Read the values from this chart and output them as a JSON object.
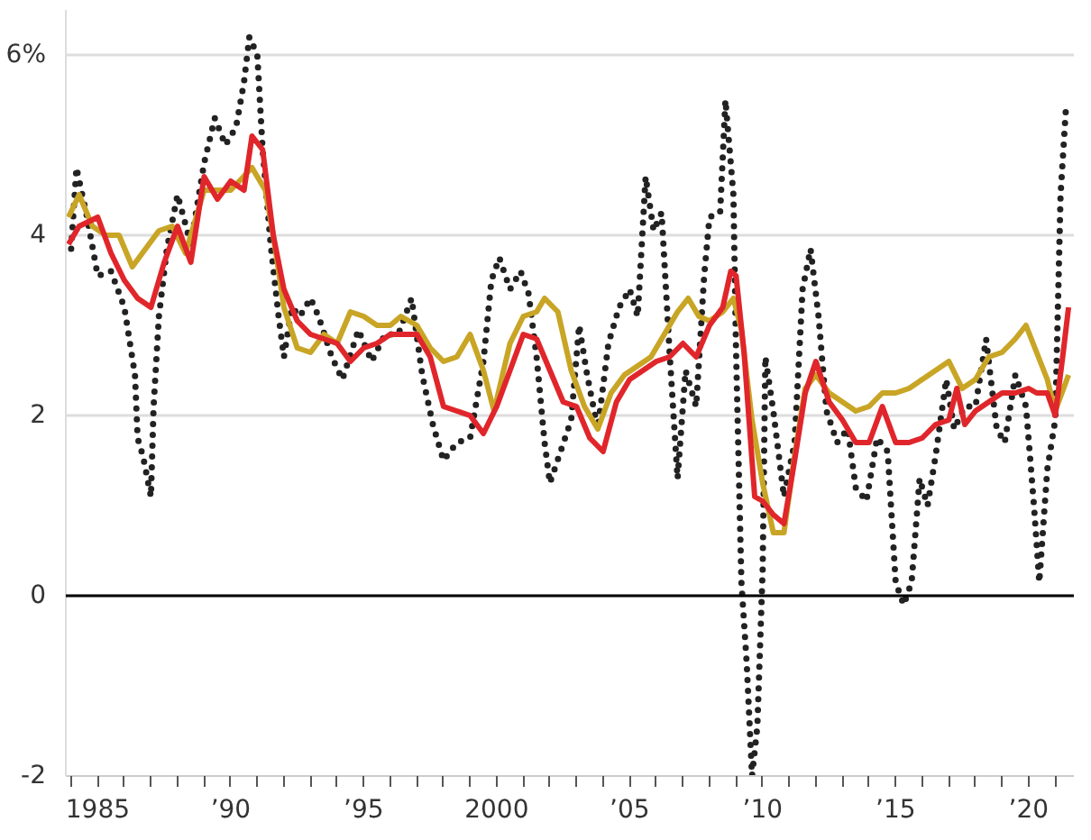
{
  "chart_data": {
    "type": "line",
    "xlim": [
      1983.8,
      2021.7
    ],
    "ylim": [
      -2,
      6.5
    ],
    "yticks": [
      {
        "value": -2,
        "label": "-2"
      },
      0,
      2,
      4,
      {
        "value": 6,
        "label": "6%"
      }
    ],
    "xticks": [
      {
        "value": 1984,
        "label": null
      },
      {
        "value": 1985,
        "label": "1985"
      },
      {
        "value": 1986,
        "label": null
      },
      {
        "value": 1987,
        "label": null
      },
      {
        "value": 1988,
        "label": null
      },
      {
        "value": 1989,
        "label": null
      },
      {
        "value": 1990,
        "label": "’90"
      },
      {
        "value": 1991,
        "label": null
      },
      {
        "value": 1992,
        "label": null
      },
      {
        "value": 1993,
        "label": null
      },
      {
        "value": 1994,
        "label": null
      },
      {
        "value": 1995,
        "label": "’95"
      },
      {
        "value": 1996,
        "label": null
      },
      {
        "value": 1997,
        "label": null
      },
      {
        "value": 1998,
        "label": null
      },
      {
        "value": 1999,
        "label": null
      },
      {
        "value": 2000,
        "label": "2000"
      },
      {
        "value": 2001,
        "label": null
      },
      {
        "value": 2002,
        "label": null
      },
      {
        "value": 2003,
        "label": null
      },
      {
        "value": 2004,
        "label": null
      },
      {
        "value": 2005,
        "label": "’05"
      },
      {
        "value": 2006,
        "label": null
      },
      {
        "value": 2007,
        "label": null
      },
      {
        "value": 2008,
        "label": null
      },
      {
        "value": 2009,
        "label": null
      },
      {
        "value": 2010,
        "label": "’10"
      },
      {
        "value": 2011,
        "label": null
      },
      {
        "value": 2012,
        "label": null
      },
      {
        "value": 2013,
        "label": null
      },
      {
        "value": 2014,
        "label": null
      },
      {
        "value": 2015,
        "label": "’15"
      },
      {
        "value": 2016,
        "label": null
      },
      {
        "value": 2017,
        "label": null
      },
      {
        "value": 2018,
        "label": null
      },
      {
        "value": 2019,
        "label": null
      },
      {
        "value": 2020,
        "label": "’20"
      },
      {
        "value": 2021,
        "label": null
      }
    ],
    "grid": "y",
    "marker": "none",
    "ref_lines": [
      {
        "axis": "y",
        "value": 0,
        "color": "#000000"
      }
    ],
    "series": [
      {
        "color": "#222222",
        "line_style": "dotted",
        "x": [
          1984.0,
          1984.2,
          1984.6,
          1985,
          1985.5,
          1986,
          1986.4,
          1986.5,
          1986.7,
          1987.0,
          1987.1,
          1987.3,
          1987.6,
          1988,
          1988.5,
          1989,
          1989.4,
          1989.8,
          1990.2,
          1990.5,
          1990.7,
          1991,
          1991.2,
          1991.5,
          1991.8,
          1992,
          1992.3,
          1992.6,
          1993,
          1993.3,
          1993.8,
          1994.2,
          1994.8,
          1995.3,
          1995.8,
          1996.3,
          1996.8,
          1997.2,
          1997.6,
          1998,
          1998.5,
          1999,
          1999.5,
          1999.8,
          2000.1,
          2000.5,
          2000.9,
          2001.2,
          2001.5,
          2001.8,
          2002,
          2002.4,
          2002.8,
          2003.1,
          2003.4,
          2003.8,
          2004.2,
          2004.6,
          2005,
          2005.3,
          2005.6,
          2005.9,
          2006.2,
          2006.5,
          2006.8,
          2007.1,
          2007.5,
          2007.8,
          2008,
          2008.4,
          2008.6,
          2008.9,
          2009.0,
          2009.2,
          2009.4,
          2009.6,
          2009.8,
          2010.0,
          2010.1,
          2010.4,
          2010.8,
          2011.2,
          2011.5,
          2011.8,
          2012.1,
          2012.4,
          2012.8,
          2013.2,
          2013.5,
          2013.9,
          2014.3,
          2014.7,
          2015,
          2015.3,
          2015.6,
          2015.9,
          2016.2,
          2016.5,
          2016.9,
          2017.2,
          2017.6,
          2018,
          2018.4,
          2018.8,
          2019.1,
          2019.5,
          2019.9,
          2020.2,
          2020.4,
          2020.7,
          2021.0,
          2021.2,
          2021.4
        ],
        "values": [
          3.85,
          4.75,
          4.2,
          3.55,
          3.6,
          3.2,
          2.45,
          1.75,
          1.55,
          1.1,
          2.1,
          3.1,
          3.85,
          4.45,
          3.9,
          4.8,
          5.3,
          5.0,
          5.2,
          5.7,
          6.2,
          6.0,
          4.95,
          3.9,
          3.1,
          2.65,
          3.2,
          3.1,
          3.3,
          3.1,
          2.65,
          2.4,
          2.95,
          2.6,
          2.9,
          2.9,
          3.3,
          2.45,
          1.9,
          1.5,
          1.7,
          1.75,
          2.6,
          3.5,
          3.75,
          3.4,
          3.6,
          3.35,
          2.65,
          1.7,
          1.25,
          1.6,
          1.95,
          3.0,
          2.45,
          1.85,
          2.8,
          3.2,
          3.4,
          3.1,
          4.65,
          4.05,
          4.25,
          2.7,
          1.3,
          2.5,
          2.1,
          3.55,
          4.2,
          4.25,
          5.5,
          4.45,
          2.7,
          0.15,
          -0.75,
          -2.0,
          -1.45,
          0.3,
          2.65,
          2.05,
          1.1,
          1.7,
          3.4,
          3.85,
          3.1,
          2.05,
          1.7,
          1.85,
          1.2,
          1.05,
          1.75,
          1.6,
          0.15,
          -0.1,
          0.15,
          1.3,
          1.0,
          1.55,
          2.4,
          1.85,
          2.1,
          2.1,
          2.85,
          1.85,
          1.7,
          2.45,
          2.1,
          1.0,
          0.15,
          1.4,
          1.95,
          4.45,
          5.4
        ]
      },
      {
        "color": "#c9a526",
        "line_style": "solid",
        "x": [
          1983.9,
          1984.3,
          1984.8,
          1985.3,
          1985.8,
          1986.3,
          1986.8,
          1987.3,
          1987.8,
          1988.3,
          1989,
          1990,
          1990.8,
          1991.3,
          1991.6,
          1992,
          1992.5,
          1993,
          1993.5,
          1994,
          1994.5,
          1995,
          1995.5,
          1996,
          1996.4,
          1997,
          1997.5,
          1998,
          1998.5,
          1999,
          1999.5,
          1999.9,
          2000.5,
          2001,
          2001.5,
          2001.8,
          2002.3,
          2002.8,
          2003.3,
          2003.8,
          2004.3,
          2004.8,
          2005.3,
          2005.8,
          2006.3,
          2006.8,
          2007.2,
          2007.6,
          2008,
          2008.5,
          2008.9,
          2009.2,
          2009.6,
          2010,
          2010.4,
          2010.8,
          2011.2,
          2011.6,
          2012,
          2012.5,
          2013,
          2013.5,
          2014,
          2014.5,
          2015,
          2015.5,
          2016,
          2016.5,
          2017,
          2017.5,
          2018,
          2018.5,
          2019,
          2019.5,
          2019.9,
          2020.3,
          2020.7,
          2021.0,
          2021.5
        ],
        "values": [
          4.2,
          4.45,
          4.1,
          4.0,
          4.0,
          3.65,
          3.85,
          4.05,
          4.1,
          3.8,
          4.5,
          4.5,
          4.75,
          4.5,
          4.0,
          3.2,
          2.75,
          2.7,
          2.9,
          2.8,
          3.15,
          3.1,
          3.0,
          3.0,
          3.1,
          3.0,
          2.75,
          2.6,
          2.65,
          2.9,
          2.5,
          2.05,
          2.8,
          3.1,
          3.15,
          3.3,
          3.15,
          2.5,
          2.1,
          1.85,
          2.25,
          2.45,
          2.55,
          2.65,
          2.9,
          3.15,
          3.3,
          3.1,
          3.05,
          3.15,
          3.3,
          2.95,
          1.95,
          1.25,
          0.7,
          0.7,
          1.55,
          2.3,
          2.45,
          2.25,
          2.15,
          2.05,
          2.1,
          2.25,
          2.25,
          2.3,
          2.4,
          2.5,
          2.6,
          2.3,
          2.4,
          2.65,
          2.7,
          2.85,
          3.0,
          2.7,
          2.4,
          2.05,
          2.45
        ]
      },
      {
        "color": "#e0262b",
        "line_style": "solid",
        "x": [
          1983.9,
          1984.3,
          1985,
          1985.5,
          1986,
          1986.5,
          1987.0,
          1987.5,
          1988,
          1988.5,
          1989,
          1989.5,
          1990,
          1990.5,
          1990.8,
          1991.2,
          1991.6,
          1992,
          1992.5,
          1993,
          1993.5,
          1994,
          1994.5,
          1995,
          1995.5,
          1996,
          1996.4,
          1997,
          1997.5,
          1998,
          1998.5,
          1999,
          1999.5,
          2000,
          2000.5,
          2001,
          2001.5,
          2002,
          2002.5,
          2003,
          2003.5,
          2004,
          2004.5,
          2005,
          2005.5,
          2006,
          2006.5,
          2007,
          2007.5,
          2008,
          2008.5,
          2008.8,
          2009,
          2009.3,
          2009.7,
          2010,
          2010.4,
          2010.8,
          2011.2,
          2011.6,
          2012,
          2012.5,
          2013,
          2013.5,
          2014,
          2014.5,
          2015,
          2015.5,
          2016,
          2016.5,
          2017,
          2017.3,
          2017.6,
          2018,
          2018.5,
          2019,
          2019.5,
          2020,
          2020.3,
          2020.7,
          2021.0,
          2021.3,
          2021.5
        ],
        "values": [
          3.9,
          4.1,
          4.2,
          3.8,
          3.5,
          3.3,
          3.2,
          3.7,
          4.1,
          3.7,
          4.65,
          4.4,
          4.6,
          4.5,
          5.1,
          4.95,
          4.0,
          3.4,
          3.05,
          2.9,
          2.85,
          2.8,
          2.6,
          2.75,
          2.8,
          2.9,
          2.9,
          2.9,
          2.65,
          2.1,
          2.05,
          2.0,
          1.8,
          2.1,
          2.5,
          2.9,
          2.85,
          2.5,
          2.15,
          2.1,
          1.75,
          1.6,
          2.15,
          2.4,
          2.5,
          2.6,
          2.65,
          2.8,
          2.65,
          3.0,
          3.2,
          3.6,
          3.55,
          2.7,
          1.1,
          1.05,
          0.9,
          0.8,
          1.5,
          2.25,
          2.6,
          2.15,
          1.95,
          1.7,
          1.7,
          2.1,
          1.7,
          1.7,
          1.75,
          1.9,
          1.95,
          2.3,
          1.9,
          2.05,
          2.15,
          2.25,
          2.25,
          2.3,
          2.25,
          2.25,
          2.0,
          2.7,
          3.2
        ]
      }
    ]
  }
}
